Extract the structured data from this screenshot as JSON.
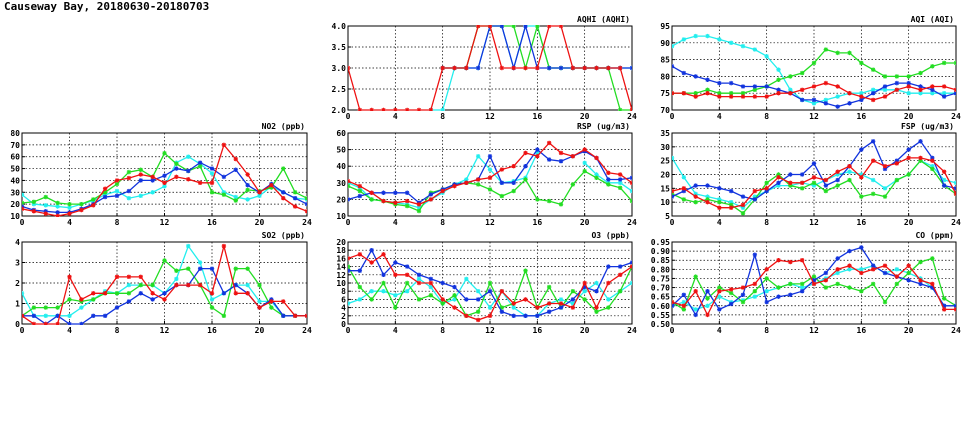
{
  "page": {
    "title": "Causeway Bay, 20180630-20180703"
  },
  "colors": {
    "red": "#ee1111",
    "blue": "#1133dd",
    "green": "#22dd22",
    "cyan": "#22eeee"
  },
  "chart_data": [
    {
      "id": "aqhi",
      "type": "line",
      "title": "AQHI (AQHI)",
      "ylim": [
        2.0,
        4.0
      ],
      "yticks": [
        2.0,
        2.5,
        3.0,
        3.5,
        4.0
      ],
      "xlim": [
        0,
        24
      ],
      "xticks": [
        0,
        4,
        8,
        12,
        16,
        20,
        24
      ],
      "series": [
        {
          "color": "cyan",
          "values": [
            null,
            null,
            null,
            null,
            null,
            null,
            null,
            2,
            2,
            3,
            3,
            3,
            4,
            4,
            3,
            4,
            4,
            3,
            3,
            3,
            3,
            3,
            3,
            3,
            3
          ]
        },
        {
          "color": "green",
          "values": [
            null,
            null,
            null,
            null,
            null,
            null,
            null,
            null,
            3,
            3,
            3,
            4,
            4,
            4,
            4,
            3,
            4,
            3,
            3,
            3,
            3,
            3,
            3,
            2,
            2
          ]
        },
        {
          "color": "blue",
          "values": [
            null,
            null,
            null,
            null,
            null,
            null,
            null,
            null,
            3,
            3,
            3,
            3,
            4,
            4,
            3,
            4,
            3,
            3,
            3,
            3,
            3,
            3,
            3,
            3,
            3
          ]
        },
        {
          "color": "red",
          "values": [
            3,
            2,
            2,
            2,
            2,
            2,
            2,
            2,
            3,
            3,
            3,
            4,
            4,
            3,
            3,
            3,
            3,
            4,
            4,
            3,
            3,
            3,
            3,
            3,
            2
          ]
        }
      ]
    },
    {
      "id": "aqi",
      "type": "line",
      "title": "AQI (AQI)",
      "ylim": [
        70,
        95
      ],
      "yticks": [
        70,
        75,
        80,
        85,
        90,
        95
      ],
      "xlim": [
        0,
        24
      ],
      "xticks": [
        0,
        4,
        8,
        12,
        16,
        20,
        24
      ],
      "series": [
        {
          "color": "cyan",
          "values": [
            89,
            91,
            92,
            92,
            91,
            90,
            89,
            88,
            86,
            82,
            76,
            73,
            72,
            73,
            74,
            75,
            75,
            76,
            76,
            76,
            75,
            75,
            75,
            75,
            75
          ]
        },
        {
          "color": "green",
          "values": [
            75,
            75,
            75,
            76,
            75,
            75,
            75,
            76,
            77,
            79,
            80,
            81,
            84,
            88,
            87,
            87,
            84,
            82,
            80,
            80,
            80,
            81,
            83,
            84,
            84
          ]
        },
        {
          "color": "blue",
          "values": [
            83,
            81,
            80,
            79,
            78,
            78,
            77,
            77,
            77,
            76,
            75,
            73,
            73,
            72,
            71,
            72,
            73,
            75,
            77,
            78,
            78,
            77,
            76,
            74,
            75
          ]
        },
        {
          "color": "red",
          "values": [
            75,
            75,
            74,
            75,
            74,
            74,
            74,
            74,
            74,
            75,
            75,
            76,
            77,
            78,
            77,
            75,
            74,
            73,
            74,
            76,
            77,
            76,
            77,
            77,
            76
          ]
        }
      ]
    },
    {
      "id": "no2",
      "type": "line",
      "title": "NO2 (ppb)",
      "ylim": [
        10,
        80
      ],
      "yticks": [
        10,
        20,
        30,
        40,
        50,
        60,
        70,
        80
      ],
      "xlim": [
        0,
        24
      ],
      "xticks": [
        0,
        4,
        8,
        12,
        16,
        20,
        24
      ],
      "series": [
        {
          "color": "cyan",
          "values": [
            28,
            20,
            19,
            18,
            17,
            20,
            23,
            28,
            31,
            25,
            27,
            30,
            35,
            55,
            60,
            54,
            46,
            30,
            26,
            24,
            27,
            35,
            30,
            25,
            24
          ]
        },
        {
          "color": "green",
          "values": [
            21,
            22,
            26,
            21,
            20,
            20,
            24,
            30,
            37,
            47,
            49,
            43,
            63,
            54,
            48,
            52,
            30,
            28,
            23,
            32,
            31,
            34,
            50,
            30,
            25
          ]
        },
        {
          "color": "blue",
          "values": [
            18,
            15,
            14,
            13,
            13,
            16,
            20,
            26,
            27,
            31,
            40,
            40,
            44,
            50,
            48,
            55,
            50,
            43,
            49,
            36,
            30,
            37,
            30,
            25,
            20
          ]
        },
        {
          "color": "red",
          "values": [
            16,
            14,
            12,
            10,
            12,
            15,
            19,
            33,
            40,
            42,
            45,
            43,
            38,
            43,
            41,
            38,
            38,
            70,
            58,
            45,
            30,
            36,
            25,
            18,
            14
          ]
        }
      ]
    },
    {
      "id": "rsp",
      "type": "line",
      "title": "RSP (ug/m3)",
      "ylim": [
        10,
        60
      ],
      "yticks": [
        10,
        20,
        30,
        40,
        50,
        60
      ],
      "xlim": [
        0,
        24
      ],
      "xticks": [
        0,
        4,
        8,
        12,
        16,
        20,
        24
      ],
      "series": [
        {
          "color": "cyan",
          "values": [
            30,
            27,
            20,
            19,
            18,
            17,
            15,
            20,
            24,
            29,
            32,
            46,
            38,
            30,
            31,
            33,
            48,
            null,
            null,
            null,
            42,
            35,
            30,
            30,
            25
          ]
        },
        {
          "color": "green",
          "values": [
            28,
            25,
            20,
            19,
            17,
            16,
            13,
            24,
            26,
            29,
            30,
            29,
            26,
            22,
            25,
            32,
            20,
            19,
            17,
            29,
            37,
            33,
            29,
            27,
            19
          ]
        },
        {
          "color": "blue",
          "values": [
            20,
            22,
            24,
            24,
            24,
            24,
            18,
            23,
            26,
            29,
            30,
            32,
            46,
            30,
            30,
            40,
            50,
            44,
            43,
            46,
            49,
            45,
            32,
            32,
            33
          ]
        },
        {
          "color": "red",
          "values": [
            31,
            28,
            24,
            19,
            18,
            19,
            17,
            20,
            25,
            28,
            30,
            32,
            33,
            38,
            40,
            48,
            46,
            54,
            48,
            46,
            50,
            45,
            36,
            35,
            30
          ]
        }
      ]
    },
    {
      "id": "fsp",
      "type": "line",
      "title": "FSP (ug/m3)",
      "ylim": [
        5,
        35
      ],
      "yticks": [
        5,
        10,
        15,
        20,
        25,
        30,
        35
      ],
      "xlim": [
        0,
        24
      ],
      "xticks": [
        0,
        4,
        8,
        12,
        16,
        20,
        24
      ],
      "series": [
        {
          "color": "cyan",
          "values": [
            26,
            19,
            13,
            12,
            11,
            10,
            8,
            12,
            14,
            16,
            16,
            17,
            16,
            18,
            20,
            21,
            20,
            18,
            15,
            18,
            20,
            25,
            23,
            18,
            17
          ]
        },
        {
          "color": "green",
          "values": [
            13,
            11,
            10,
            11,
            10,
            9,
            6,
            11,
            17,
            20,
            16,
            15,
            17,
            14,
            16,
            18,
            12,
            13,
            12,
            18,
            20,
            25,
            22,
            16,
            13
          ]
        },
        {
          "color": "blue",
          "values": [
            12,
            14,
            16,
            16,
            15,
            14,
            12,
            11,
            14,
            17,
            20,
            20,
            24,
            16,
            18,
            23,
            29,
            32,
            22,
            25,
            29,
            32,
            26,
            16,
            15
          ]
        },
        {
          "color": "red",
          "values": [
            14,
            15,
            12,
            10,
            8,
            8,
            9,
            14,
            15,
            19,
            17,
            17,
            19,
            18,
            21,
            23,
            19,
            25,
            23,
            24,
            26,
            26,
            25,
            21,
            13
          ]
        }
      ]
    },
    {
      "id": "so2",
      "type": "line",
      "title": "SO2 (ppb)",
      "ylim": [
        0,
        4
      ],
      "yticks": [
        0,
        1,
        2,
        3,
        4
      ],
      "xlim": [
        0,
        24
      ],
      "xticks": [
        0,
        4,
        8,
        12,
        16,
        20,
        24
      ],
      "series": [
        {
          "color": "cyan",
          "values": [
            1.5,
            0.4,
            0.4,
            0.4,
            0.4,
            0.8,
            1.2,
            1.6,
            1.5,
            1.9,
            1.9,
            1.9,
            1.5,
            2.2,
            3.8,
            3.0,
            1.2,
            1.5,
            1.9,
            1.9,
            1.1,
            1.1,
            0.4,
            0.4,
            0.4
          ]
        },
        {
          "color": "green",
          "values": [
            0.4,
            0.8,
            0.8,
            0.8,
            1.2,
            1.1,
            1.2,
            1.5,
            1.5,
            1.5,
            1.9,
            1.9,
            3.1,
            2.6,
            2.7,
            1.9,
            0.8,
            0.4,
            2.7,
            2.7,
            1.9,
            0.8,
            0.4,
            0.4,
            0.4
          ]
        },
        {
          "color": "blue",
          "values": [
            0.4,
            0.4,
            0.0,
            0.4,
            0.0,
            0.0,
            0.4,
            0.4,
            0.8,
            1.1,
            1.5,
            1.2,
            1.5,
            1.9,
            1.9,
            2.7,
            2.7,
            1.5,
            1.9,
            1.5,
            0.8,
            1.2,
            0.4,
            0.4,
            0.4
          ]
        },
        {
          "color": "red",
          "values": [
            0.4,
            0.0,
            0.0,
            0.0,
            2.3,
            1.2,
            1.5,
            1.5,
            2.3,
            2.3,
            2.3,
            1.5,
            1.2,
            1.9,
            1.9,
            1.9,
            1.5,
            3.8,
            1.5,
            1.5,
            0.8,
            1.1,
            1.1,
            0.4,
            0.4
          ]
        }
      ]
    },
    {
      "id": "o3",
      "type": "line",
      "title": "O3 (ppb)",
      "ylim": [
        0,
        20
      ],
      "yticks": [
        0,
        2,
        4,
        6,
        8,
        10,
        12,
        14,
        16,
        18,
        20
      ],
      "xlim": [
        0,
        24
      ],
      "xticks": [
        0,
        4,
        8,
        12,
        16,
        20,
        24
      ],
      "series": [
        {
          "color": "cyan",
          "values": [
            5,
            6,
            8,
            8,
            7,
            8,
            11,
            9,
            5,
            6,
            11,
            8,
            4,
            8,
            4,
            2,
            2,
            5,
            6,
            5,
            8,
            10,
            6,
            8,
            10
          ]
        },
        {
          "color": "green",
          "values": [
            14,
            9,
            6,
            10,
            4,
            10,
            6,
            7,
            5,
            7,
            2,
            3,
            10,
            4,
            5,
            13,
            4,
            9,
            4,
            8,
            6,
            3,
            4,
            8,
            14
          ]
        },
        {
          "color": "blue",
          "values": [
            13,
            13,
            18,
            12,
            15,
            14,
            12,
            11,
            10,
            9,
            6,
            6,
            8,
            3,
            2,
            2,
            2,
            3,
            4,
            6,
            9,
            8,
            14,
            14,
            15
          ]
        },
        {
          "color": "red",
          "values": [
            16,
            17,
            15,
            17,
            12,
            12,
            10,
            10,
            6,
            4,
            2,
            1,
            2,
            8,
            5,
            6,
            4,
            5,
            5,
            4,
            10,
            4,
            10,
            12,
            14
          ]
        }
      ]
    },
    {
      "id": "co",
      "type": "line",
      "title": "CO (ppm)",
      "ylim": [
        0.5,
        0.95
      ],
      "yticks": [
        0.5,
        0.55,
        0.6,
        0.65,
        0.7,
        0.75,
        0.8,
        0.85,
        0.9,
        0.95
      ],
      "xlim": [
        0,
        24
      ],
      "xticks": [
        0,
        4,
        8,
        12,
        16,
        20,
        24
      ],
      "series": [
        {
          "color": "cyan",
          "values": [
            0.6,
            0.62,
            0.58,
            0.6,
            0.65,
            0.62,
            0.63,
            0.65,
            0.68,
            0.7,
            0.72,
            0.7,
            0.72,
            0.75,
            0.78,
            0.8,
            0.8,
            0.82,
            0.78,
            0.8,
            0.78,
            0.75,
            0.7,
            0.6,
            0.6
          ]
        },
        {
          "color": "green",
          "values": [
            0.62,
            0.58,
            0.76,
            0.64,
            0.7,
            0.67,
            0.62,
            0.68,
            0.75,
            0.7,
            0.72,
            0.72,
            0.76,
            0.7,
            0.72,
            0.7,
            0.68,
            0.72,
            0.62,
            0.72,
            0.78,
            0.84,
            0.86,
            0.64,
            0.6
          ]
        },
        {
          "color": "blue",
          "values": [
            0.6,
            0.66,
            0.55,
            0.68,
            0.58,
            0.61,
            0.66,
            0.88,
            0.62,
            0.65,
            0.66,
            0.68,
            0.74,
            0.78,
            0.86,
            0.9,
            0.92,
            0.82,
            0.78,
            0.76,
            0.74,
            0.72,
            0.7,
            0.6,
            0.6
          ]
        },
        {
          "color": "red",
          "values": [
            0.62,
            0.6,
            0.68,
            0.55,
            0.68,
            0.69,
            0.7,
            0.72,
            0.8,
            0.85,
            0.84,
            0.85,
            0.72,
            0.74,
            0.8,
            0.82,
            0.78,
            0.8,
            0.82,
            0.76,
            0.82,
            0.74,
            0.72,
            0.58,
            0.58
          ]
        }
      ]
    }
  ]
}
